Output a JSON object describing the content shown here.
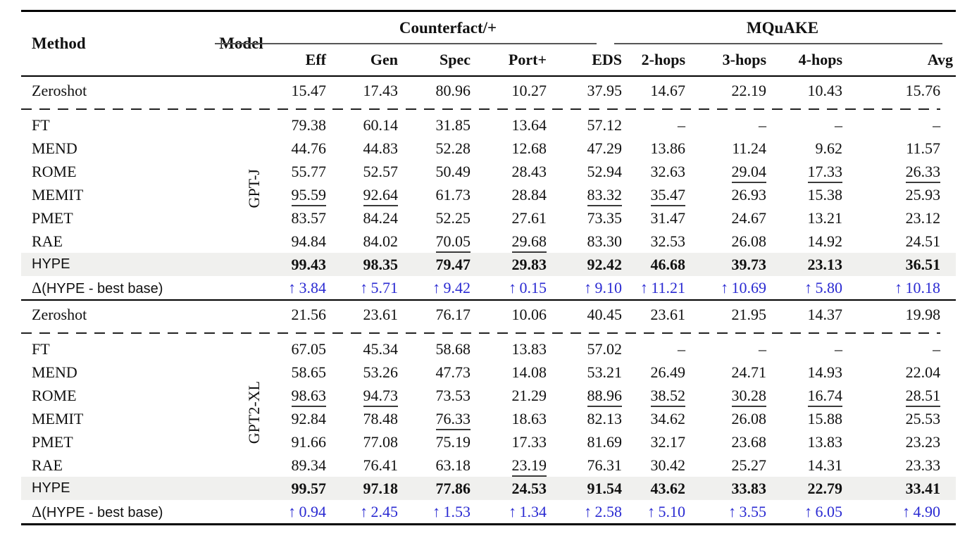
{
  "colors": {
    "delta_blue": "#2a2ad2",
    "highlight_bg": "#f0f0ee"
  },
  "icons": {
    "up_arrow": "↑"
  },
  "header": {
    "method": "Method",
    "model": "Model",
    "groups": [
      {
        "label": "Counterfact/+",
        "cols": [
          "Eff",
          "Gen",
          "Spec",
          "Port+",
          "EDS"
        ]
      },
      {
        "label": "MQuAKE",
        "cols": [
          "2-hops",
          "3-hops",
          "4-hops",
          "Avg"
        ]
      }
    ]
  },
  "delta_label": {
    "sym": "Δ",
    "rest": "(HYPE - best base)"
  },
  "blocks": [
    {
      "model": "GPT-J",
      "rows": [
        {
          "label": "Zeroshot",
          "values": [
            "15.47",
            "17.43",
            "80.96",
            "10.27",
            "37.95",
            "14.67",
            "22.19",
            "10.43",
            "15.76"
          ]
        },
        {
          "label": "FT",
          "dashed_above": true,
          "values": [
            "79.38",
            "60.14",
            "31.85",
            "13.64",
            "57.12",
            "–",
            "–",
            "–",
            "–"
          ]
        },
        {
          "label": "MEND",
          "values": [
            "44.76",
            "44.83",
            "52.28",
            "12.68",
            "47.29",
            "13.86",
            "11.24",
            "9.62",
            "11.57"
          ]
        },
        {
          "label": "ROME",
          "values": [
            "55.77",
            "52.57",
            "50.49",
            "28.43",
            "52.94",
            "32.63",
            "29.04",
            "17.33",
            "26.33"
          ],
          "underline": [
            6,
            7,
            8
          ]
        },
        {
          "label": "MEMIT",
          "values": [
            "95.59",
            "92.64",
            "61.73",
            "28.84",
            "83.32",
            "35.47",
            "26.93",
            "15.38",
            "25.93"
          ],
          "underline": [
            0,
            1,
            4,
            5
          ]
        },
        {
          "label": "PMET",
          "values": [
            "83.57",
            "84.24",
            "52.25",
            "27.61",
            "73.35",
            "31.47",
            "24.67",
            "13.21",
            "23.12"
          ]
        },
        {
          "label": "RAE",
          "values": [
            "94.84",
            "84.02",
            "70.05",
            "29.68",
            "83.30",
            "32.53",
            "26.08",
            "14.92",
            "24.51"
          ],
          "underline": [
            2,
            3
          ]
        },
        {
          "label": "HYPE",
          "label_font": "sans",
          "highlight": true,
          "values": [
            "99.43",
            "98.35",
            "79.47",
            "29.83",
            "92.42",
            "46.68",
            "39.73",
            "23.13",
            "36.51"
          ]
        },
        {
          "type": "delta",
          "values": [
            "3.84",
            "5.71",
            "9.42",
            "0.15",
            "9.10",
            "11.21",
            "10.69",
            "5.80",
            "10.18"
          ]
        }
      ]
    },
    {
      "model": "GPT2-XL",
      "rows": [
        {
          "label": "Zeroshot",
          "values": [
            "21.56",
            "23.61",
            "76.17",
            "10.06",
            "40.45",
            "23.61",
            "21.95",
            "14.37",
            "19.98"
          ]
        },
        {
          "label": "FT",
          "dashed_above": true,
          "values": [
            "67.05",
            "45.34",
            "58.68",
            "13.83",
            "57.02",
            "–",
            "–",
            "–",
            "–"
          ]
        },
        {
          "label": "MEND",
          "values": [
            "58.65",
            "53.26",
            "47.73",
            "14.08",
            "53.21",
            "26.49",
            "24.71",
            "14.93",
            "22.04"
          ]
        },
        {
          "label": "ROME",
          "values": [
            "98.63",
            "94.73",
            "73.53",
            "21.29",
            "88.96",
            "38.52",
            "30.28",
            "16.74",
            "28.51"
          ],
          "underline": [
            0,
            1,
            4,
            5,
            6,
            7,
            8
          ]
        },
        {
          "label": "MEMIT",
          "values": [
            "92.84",
            "78.48",
            "76.33",
            "18.63",
            "82.13",
            "34.62",
            "26.08",
            "15.88",
            "25.53"
          ],
          "underline": [
            2
          ]
        },
        {
          "label": "PMET",
          "values": [
            "91.66",
            "77.08",
            "75.19",
            "17.33",
            "81.69",
            "32.17",
            "23.68",
            "13.83",
            "23.23"
          ]
        },
        {
          "label": "RAE",
          "values": [
            "89.34",
            "76.41",
            "63.18",
            "23.19",
            "76.31",
            "30.42",
            "25.27",
            "14.31",
            "23.33"
          ],
          "underline": [
            3
          ]
        },
        {
          "label": "HYPE",
          "label_font": "sans",
          "highlight": true,
          "values": [
            "99.57",
            "97.18",
            "77.86",
            "24.53",
            "91.54",
            "43.62",
            "33.83",
            "22.79",
            "33.41"
          ]
        },
        {
          "type": "delta",
          "values": [
            "0.94",
            "2.45",
            "1.53",
            "1.34",
            "2.58",
            "5.10",
            "3.55",
            "6.05",
            "4.90"
          ]
        }
      ]
    }
  ]
}
